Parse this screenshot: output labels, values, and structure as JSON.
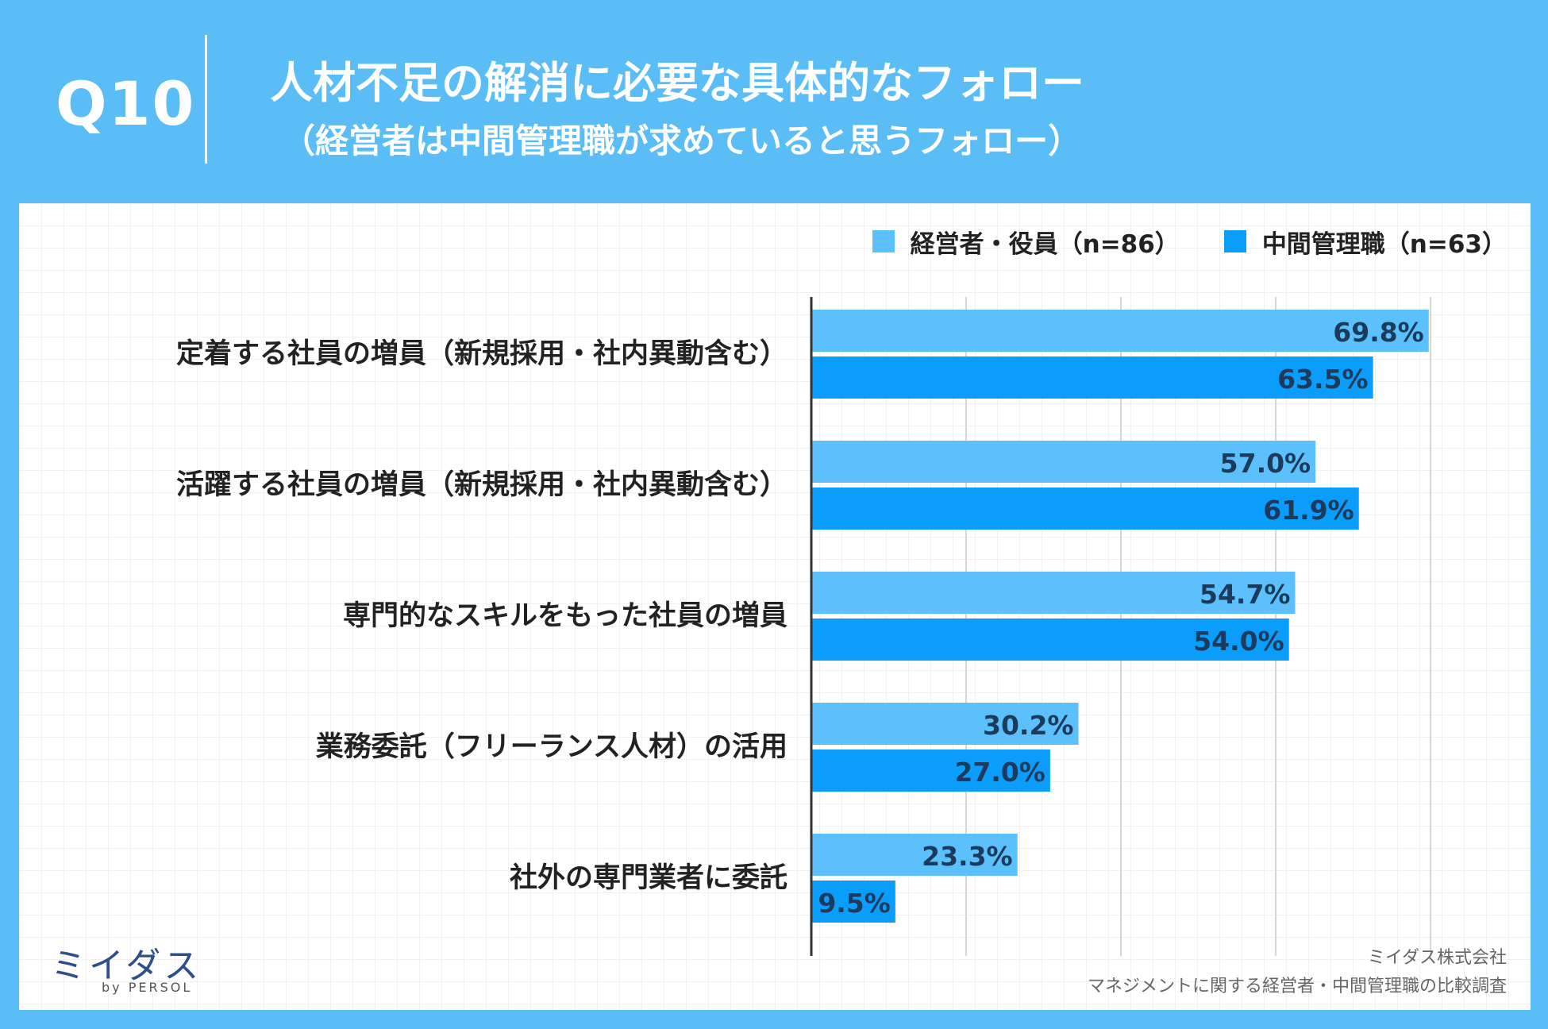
{
  "header": {
    "question": "Q10",
    "title": "人材不足の解消に必要な具体的なフォロー",
    "subtitle": "（経営者は中間管理職が求めていると思うフォロー）"
  },
  "colors": {
    "background": "#5bbdf6",
    "series_executives": "#5bc0fb",
    "series_managers": "#0a9dfb",
    "gridline": "#d6d6d6"
  },
  "chart_data": {
    "type": "bar",
    "orientation": "horizontal",
    "title": "人材不足の解消に必要な具体的なフォロー（経営者は中間管理職が求めていると思うフォロー）",
    "categories": [
      "定着する社員の増員（新規採用・社内異動含む）",
      "活躍する社員の増員（新規採用・社内異動含む）",
      "専門的なスキルをもった社員の増員",
      "業務委託（フリーランス人材）の活用",
      "社外の専門業者に委託"
    ],
    "series": [
      {
        "name": "経営者・役員（n=86）",
        "color": "#5bc0fb",
        "values": [
          69.8,
          57.0,
          54.7,
          30.2,
          23.3
        ],
        "labels": [
          "69.8%",
          "57.0%",
          "54.7%",
          "30.2%",
          "23.3%"
        ]
      },
      {
        "name": "中間管理職（n=63）",
        "color": "#0a9dfb",
        "values": [
          63.5,
          61.9,
          54.0,
          27.0,
          9.5
        ],
        "labels": [
          "63.5%",
          "61.9%",
          "54.0%",
          "27.0%",
          "9.5%"
        ]
      }
    ],
    "xlim": [
      0,
      70
    ],
    "grid_step": 17.5,
    "legend_position": "top-right",
    "xlabel": "",
    "ylabel": ""
  },
  "footer": {
    "logo_text": "ミイダス",
    "logo_sub": "by PERSOL",
    "company": "ミイダス株式会社",
    "survey": "マネジメントに関する経営者・中間管理職の比較調査"
  }
}
